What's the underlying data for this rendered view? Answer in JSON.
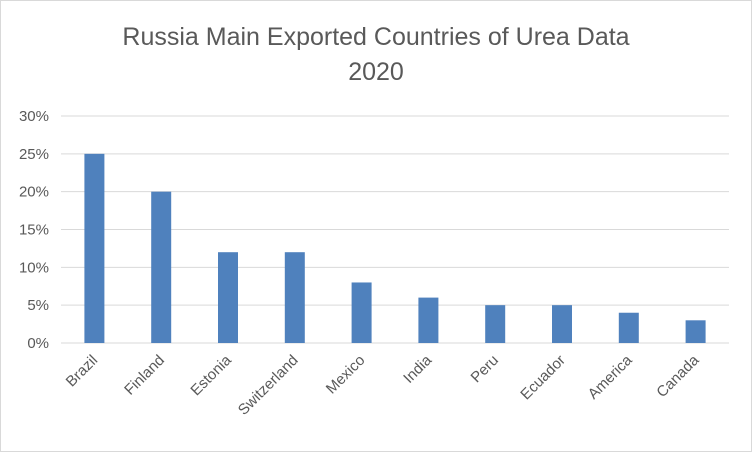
{
  "chart": {
    "title_line1": "Russia Main Exported Countries of Urea Data",
    "title_line2": "2020"
  },
  "chart_data": {
    "type": "bar",
    "title": "Russia Main Exported Countries of Urea Data 2020",
    "categories": [
      "Brazil",
      "Finland",
      "Estonia",
      "Switzerland",
      "Mexico",
      "India",
      "Peru",
      "Ecuador",
      "America",
      "Canada"
    ],
    "values": [
      25,
      20,
      12,
      12,
      8,
      6,
      5,
      5,
      4,
      3
    ],
    "yticks": [
      "0%",
      "5%",
      "10%",
      "15%",
      "20%",
      "25%",
      "30%"
    ],
    "ylim": [
      0,
      30
    ],
    "grid": true,
    "legend": "none",
    "colors": {
      "bar": "#4f81bd",
      "grid": "#d9d9d9",
      "text": "#595959"
    }
  }
}
